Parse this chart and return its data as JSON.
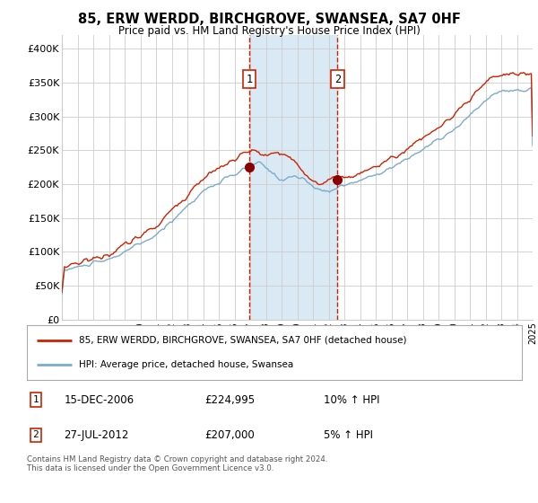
{
  "title": "85, ERW WERDD, BIRCHGROVE, SWANSEA, SA7 0HF",
  "subtitle": "Price paid vs. HM Land Registry's House Price Index (HPI)",
  "legend_line1": "85, ERW WERDD, BIRCHGROVE, SWANSEA, SA7 0HF (detached house)",
  "legend_line2": "HPI: Average price, detached house, Swansea",
  "annotation1_date": "15-DEC-2006",
  "annotation1_price": "£224,995",
  "annotation1_hpi": "10% ↑ HPI",
  "annotation2_date": "27-JUL-2012",
  "annotation2_price": "£207,000",
  "annotation2_hpi": "5% ↑ HPI",
  "footer": "Contains HM Land Registry data © Crown copyright and database right 2024.\nThis data is licensed under the Open Government Licence v3.0.",
  "hpi_color": "#7aabcd",
  "price_color": "#cc2200",
  "marker_color": "#8b0000",
  "vline_color": "#cc2200",
  "shade_color": "#daeaf5",
  "grid_color": "#cccccc",
  "background_color": "#ffffff",
  "ylim": [
    0,
    420000
  ],
  "ytick_vals": [
    0,
    50000,
    100000,
    150000,
    200000,
    250000,
    300000,
    350000,
    400000
  ],
  "ytick_labels": [
    "£0",
    "£50K",
    "£100K",
    "£150K",
    "£200K",
    "£250K",
    "£300K",
    "£350K",
    "£400K"
  ],
  "sale1_x": 2006.96,
  "sale1_y": 224995,
  "sale2_x": 2012.57,
  "sale2_y": 207000,
  "xmin": 1995,
  "xmax": 2025
}
